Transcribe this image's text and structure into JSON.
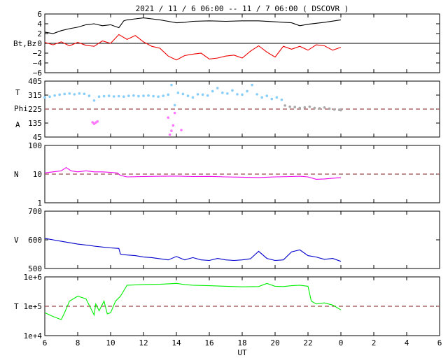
{
  "title": "2021 / 11 /  6   06:00 -- 11 /  7   06:00 ( DSCOVR )",
  "xlabel": "UT",
  "x_ticks": [
    "6",
    "8",
    "10",
    "12",
    "14",
    "16",
    "18",
    "20",
    "22",
    "0",
    "2",
    "4",
    "6"
  ],
  "chart_data": [
    {
      "type": "line",
      "panel": "magnetic-field",
      "ylabel": "Bt,Bz",
      "ylim": [
        -6,
        6
      ],
      "y_ticks": [
        "6",
        "4",
        "2",
        "0",
        "−2",
        "−4",
        "−6"
      ],
      "y_tick_values": [
        6,
        4,
        2,
        0,
        -2,
        -4,
        -6
      ],
      "reference_line": 0,
      "series": [
        {
          "name": "Bt",
          "color": "#000000",
          "x": [
            6,
            6.5,
            7,
            7.5,
            8,
            8.5,
            9,
            9.5,
            10,
            10.5,
            10.8,
            11,
            11.5,
            12,
            12.5,
            13,
            13.5,
            14,
            14.5,
            15,
            16,
            17,
            18,
            19,
            20,
            21,
            21.5,
            22,
            22.5,
            23,
            24
          ],
          "y": [
            2.3,
            2.0,
            2.6,
            3.0,
            3.3,
            3.8,
            4.0,
            3.6,
            3.8,
            3.2,
            4.6,
            4.8,
            5.0,
            5.2,
            5.0,
            4.8,
            4.5,
            4.2,
            4.3,
            4.5,
            4.6,
            4.5,
            4.6,
            4.6,
            4.4,
            4.2,
            3.6,
            3.9,
            4.1,
            4.3,
            4.8
          ]
        },
        {
          "name": "Bz",
          "color": "#ee0000",
          "x": [
            6,
            6.5,
            7,
            7.5,
            8,
            8.5,
            9,
            9.5,
            10,
            10.5,
            11,
            11.5,
            12,
            12.5,
            13,
            13.5,
            14,
            14.5,
            15,
            15.5,
            16,
            16.5,
            17,
            17.5,
            18,
            18.5,
            19,
            19.5,
            20,
            20.5,
            21,
            21.5,
            22,
            22.5,
            23,
            23.5,
            24
          ],
          "y": [
            0.2,
            -0.3,
            0.3,
            -0.5,
            0.2,
            -0.4,
            -0.6,
            0.5,
            0.0,
            1.8,
            0.8,
            1.6,
            0.3,
            -0.6,
            -1.0,
            -2.6,
            -3.4,
            -2.5,
            -2.2,
            -2.0,
            -3.2,
            -3.0,
            -2.6,
            -2.4,
            -3.0,
            -1.6,
            -0.5,
            -1.8,
            -2.8,
            -0.6,
            -1.2,
            -0.6,
            -1.4,
            -0.3,
            -0.5,
            -1.4,
            -0.8
          ]
        }
      ]
    },
    {
      "type": "scatter",
      "panel": "phi",
      "ylabel_lines": [
        "T",
        "Phi",
        "A"
      ],
      "ylim": [
        45,
        405
      ],
      "y_ticks": [
        "405",
        "315",
        "225",
        "135",
        "45"
      ],
      "y_tick_values": [
        405,
        315,
        225,
        135,
        45
      ],
      "reference_line": 225,
      "series": [
        {
          "name": "",
          "color": "#87cefa",
          "x": [
            6.0,
            6.3,
            6.6,
            6.9,
            7.2,
            7.5,
            7.8,
            8.1,
            8.4,
            8.7,
            9.0,
            9.3,
            9.6,
            9.9,
            10.2,
            10.5,
            10.8,
            11.1,
            11.4,
            11.7,
            12.0,
            12.3,
            12.6,
            12.9,
            13.2,
            13.5,
            13.7,
            13.9,
            14.1,
            14.4,
            14.7,
            15.0,
            15.3,
            15.6,
            15.9,
            16.2,
            16.5,
            16.8,
            17.1,
            17.4,
            17.7,
            18.0,
            18.3,
            18.6,
            18.9,
            19.2,
            19.5,
            19.8,
            20.1,
            20.4
          ],
          "y": [
            300,
            305,
            312,
            318,
            322,
            325,
            320,
            325,
            323,
            310,
            280,
            305,
            308,
            310,
            306,
            308,
            305,
            310,
            312,
            308,
            310,
            312,
            308,
            305,
            310,
            318,
            380,
            250,
            330,
            322,
            310,
            300,
            320,
            318,
            312,
            340,
            360,
            330,
            325,
            345,
            320,
            318,
            340,
            380,
            320,
            300,
            310,
            290,
            300,
            285
          ]
        },
        {
          "name": "",
          "color": "#a9a9a9",
          "x": [
            20.6,
            20.9,
            21.2,
            21.5,
            21.8,
            22.1,
            22.4,
            22.7,
            23.0,
            23.3,
            23.6,
            23.9,
            24.0
          ],
          "y": [
            248,
            240,
            238,
            232,
            236,
            240,
            232,
            230,
            235,
            228,
            222,
            220,
            218
          ]
        },
        {
          "name": "",
          "color": "#ff77ff",
          "x": [
            8.9,
            9.0,
            9.1,
            9.2,
            13.5,
            13.6,
            13.7,
            13.8,
            13.9,
            14.3
          ],
          "y": [
            140,
            130,
            138,
            145,
            170,
            60,
            85,
            120,
            200,
            90
          ]
        }
      ]
    },
    {
      "type": "line",
      "panel": "density",
      "ylabel": "N",
      "scale": "log",
      "ylim": [
        1,
        100
      ],
      "y_ticks": [
        "100",
        "10",
        "1"
      ],
      "y_tick_values": [
        100,
        10,
        1
      ],
      "reference_line": 10,
      "series": [
        {
          "name": "",
          "color": "#ee00ee",
          "x": [
            6,
            6.5,
            7,
            7.3,
            7.6,
            8,
            8.5,
            9,
            9.5,
            10,
            10.4,
            10.6,
            11,
            12,
            13,
            14,
            15,
            16,
            17,
            18,
            19,
            20,
            21,
            21.5,
            22,
            22.5,
            23,
            24
          ],
          "y": [
            11,
            12,
            13,
            17,
            13,
            12,
            13,
            12,
            12,
            11.5,
            11,
            9,
            8,
            8.2,
            8.4,
            8.5,
            8.2,
            8.3,
            8,
            7.8,
            7.6,
            8,
            8.2,
            8.4,
            8,
            6.6,
            6.8,
            7.6
          ]
        }
      ]
    },
    {
      "type": "line",
      "panel": "velocity",
      "ylabel": "V",
      "ylim": [
        500,
        700
      ],
      "y_ticks": [
        "700",
        "600",
        "500"
      ],
      "y_tick_values": [
        700,
        600,
        500
      ],
      "series": [
        {
          "name": "",
          "color": "#0000cc",
          "x": [
            6,
            6.5,
            7,
            7.5,
            8,
            8.5,
            9,
            9.5,
            10,
            10.5,
            10.6,
            11,
            11.5,
            12,
            12.5,
            13,
            13.5,
            14,
            14.5,
            15,
            15.5,
            16,
            16.5,
            17,
            17.5,
            18,
            18.5,
            19,
            19.5,
            20,
            20.5,
            21,
            21.5,
            22,
            22.5,
            23,
            23.5,
            24
          ],
          "y": [
            605,
            600,
            595,
            590,
            585,
            582,
            578,
            575,
            572,
            570,
            550,
            547,
            545,
            540,
            538,
            534,
            530,
            542,
            530,
            538,
            530,
            528,
            535,
            530,
            528,
            530,
            534,
            560,
            535,
            528,
            530,
            558,
            565,
            545,
            540,
            532,
            535,
            525
          ]
        }
      ]
    },
    {
      "type": "line",
      "panel": "temperature",
      "ylabel": "T",
      "scale": "log",
      "ylim": [
        10000,
        1000000
      ],
      "y_ticks": [
        "1e+6",
        "1e+5",
        "1e+4"
      ],
      "y_tick_values": [
        1000000,
        100000,
        10000
      ],
      "reference_line": 100000,
      "series": [
        {
          "name": "",
          "color": "#00ee00",
          "x": [
            6,
            6.5,
            7,
            7.2,
            7.5,
            8,
            8.5,
            9,
            9.1,
            9.3,
            9.6,
            9.8,
            10.0,
            10.3,
            10.6,
            11,
            12,
            13,
            13.5,
            14,
            14.5,
            15,
            16,
            17,
            18,
            19,
            19.5,
            20,
            20.5,
            21,
            21.5,
            22,
            22.2,
            22.5,
            23,
            23.5,
            24
          ],
          "y": [
            60000,
            45000,
            35000,
            60000,
            150000,
            220000,
            180000,
            50000,
            120000,
            70000,
            150000,
            55000,
            60000,
            150000,
            220000,
            520000,
            550000,
            560000,
            580000,
            600000,
            550000,
            520000,
            500000,
            480000,
            460000,
            470000,
            600000,
            480000,
            470000,
            500000,
            520000,
            480000,
            150000,
            120000,
            130000,
            110000,
            75000
          ]
        }
      ]
    }
  ]
}
